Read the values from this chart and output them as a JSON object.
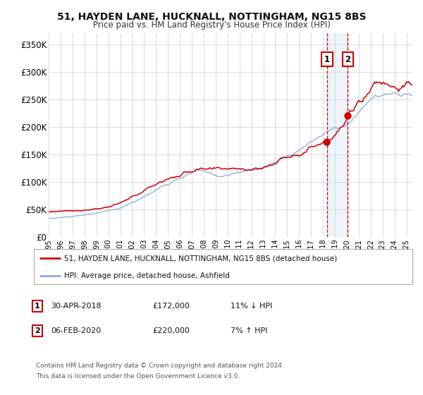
{
  "title": "51, HAYDEN LANE, HUCKNALL, NOTTINGHAM, NG15 8BS",
  "subtitle": "Price paid vs. HM Land Registry's House Price Index (HPI)",
  "red_label": "51, HAYDEN LANE, HUCKNALL, NOTTINGHAM, NG15 8BS (detached house)",
  "blue_label": "HPI: Average price, detached house, Ashfield",
  "transaction1_date": "30-APR-2018",
  "transaction1_price": 172000,
  "transaction1_hpi_diff": "11% ↓ HPI",
  "transaction2_date": "06-FEB-2020",
  "transaction2_price": 220000,
  "transaction2_hpi_diff": "7% ↑ HPI",
  "footnote1": "Contains HM Land Registry data © Crown copyright and database right 2024.",
  "footnote2": "This data is licensed under the Open Government Licence v3.0.",
  "red_color": "#cc0000",
  "blue_color": "#88aadd",
  "bg_shade_color": "#ccddf0",
  "vline_color": "#dd0000",
  "grid_color": "#cccccc",
  "ylim": [
    0,
    370000
  ],
  "yticks": [
    0,
    50000,
    100000,
    150000,
    200000,
    250000,
    300000,
    350000
  ],
  "ytick_labels": [
    "£0",
    "£50K",
    "£100K",
    "£150K",
    "£200K",
    "£250K",
    "£300K",
    "£350K"
  ],
  "xstart": 1995,
  "xend": 2025.5,
  "transaction1_year": 2018.33,
  "transaction2_year": 2020.09
}
